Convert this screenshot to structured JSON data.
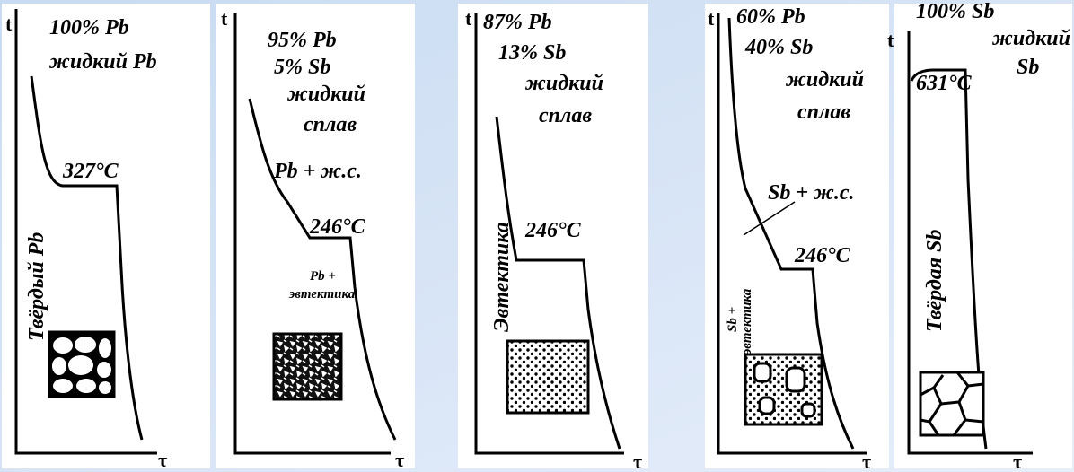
{
  "panels": [
    {
      "t": "t",
      "tau": "τ",
      "labels": [
        "100% Pb",
        "жидкий Pb",
        "327°C",
        "Твёрдый Pb"
      ]
    },
    {
      "t": "t",
      "tau": "τ",
      "labels": [
        "95% Pb",
        "5% Sb",
        "жидкий",
        "сплав",
        "Pb + ж.с.",
        "246°C",
        "Pb +",
        "эвтектика"
      ]
    },
    {
      "t": "t",
      "tau": "τ",
      "labels": [
        "87% Pb",
        "13% Sb",
        "жидкий",
        "сплав",
        "Эвтектика",
        "246°C"
      ]
    },
    {
      "t": "t",
      "tau": "τ",
      "labels": [
        "60% Pb",
        "40% Sb",
        "жидкий",
        "сплав",
        "Sb + ж.с.",
        "246°C",
        "Sb +",
        "эвтектика"
      ]
    },
    {
      "t": "t",
      "tau": "τ",
      "labels": [
        "100% Sb",
        "631°C",
        "жидкий",
        "Sb",
        "Твёрдая Sb"
      ]
    }
  ]
}
